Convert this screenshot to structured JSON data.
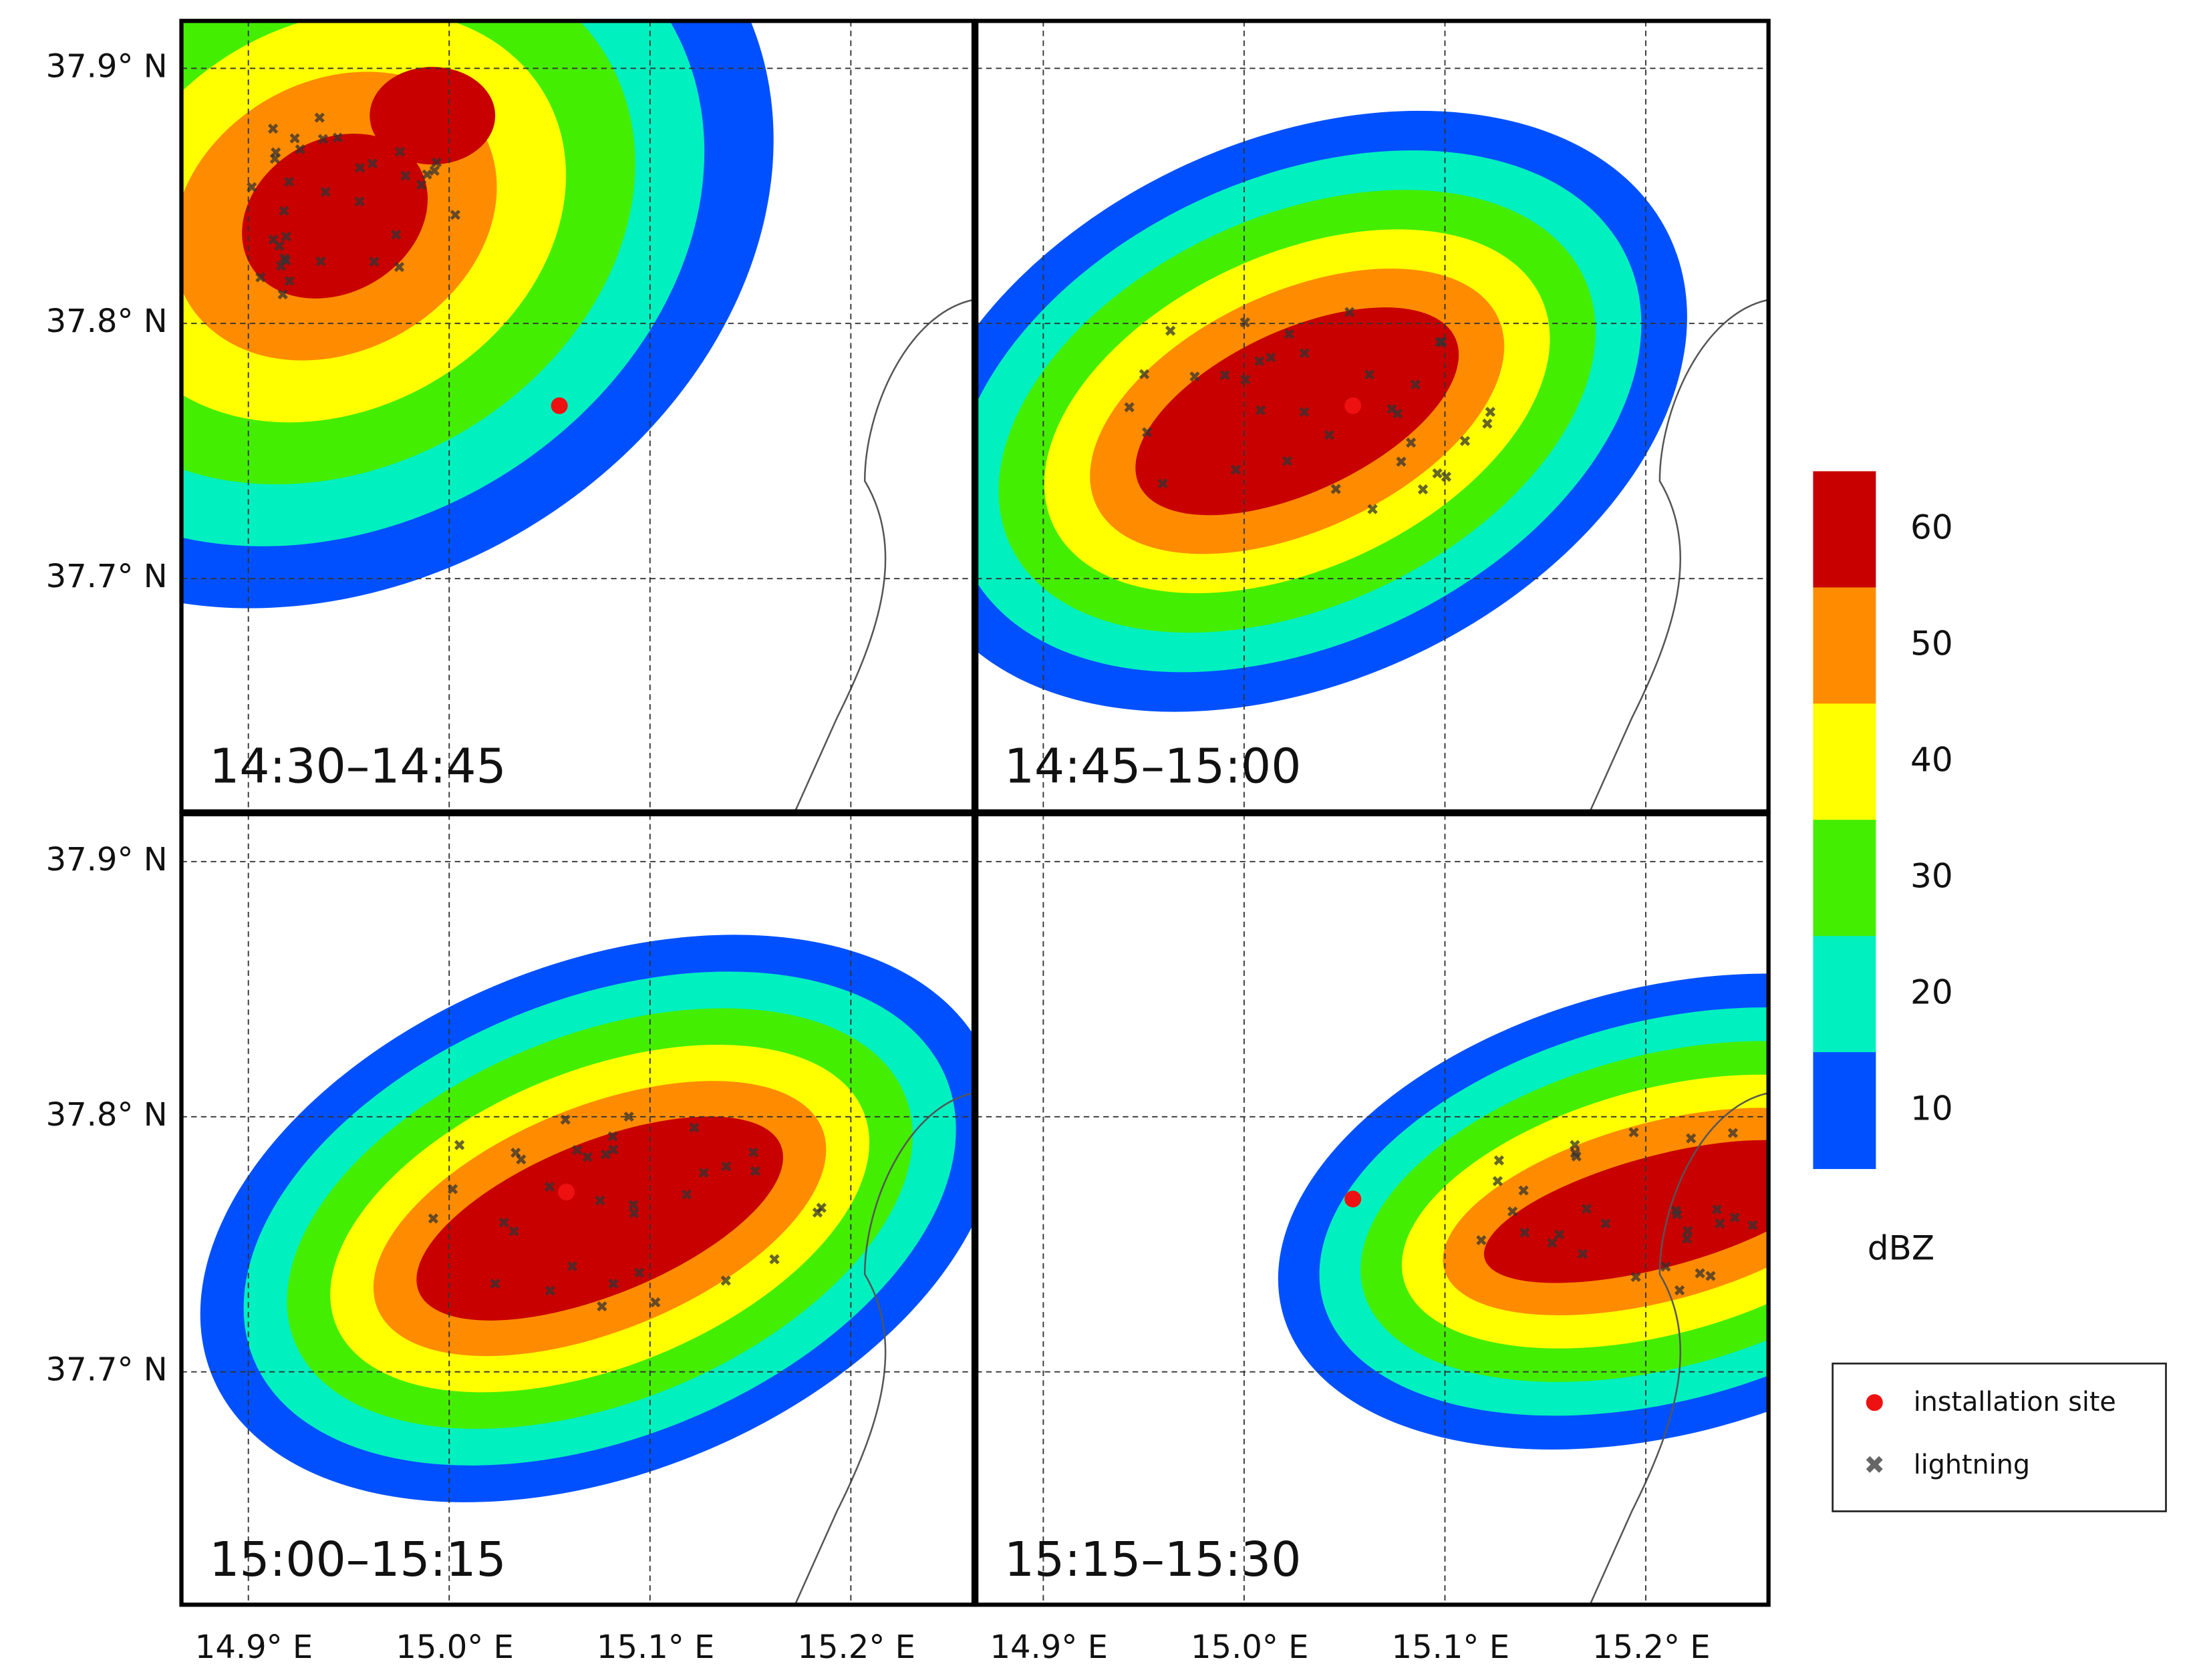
{
  "panels": [
    {
      "label": "14:30–14:45"
    },
    {
      "label": "14:45–15:00"
    },
    {
      "label": "15:00–15:15"
    },
    {
      "label": "15:15–15:30"
    }
  ],
  "y_axis": {
    "ticks": [
      "37.9° N",
      "37.8° N",
      "37.7° N"
    ]
  },
  "x_axis": {
    "ticks": [
      "14.9° E",
      "15.0° E",
      "15.1° E",
      "15.2° E"
    ]
  },
  "colorbar": {
    "unit": "dBZ",
    "levels": [
      {
        "label": "60",
        "color": "#c80000"
      },
      {
        "label": "50",
        "color": "#ff8c00"
      },
      {
        "label": "40",
        "color": "#ffff00"
      },
      {
        "label": "30",
        "color": "#44ee00"
      },
      {
        "label": "20",
        "color": "#00f0c0"
      },
      {
        "label": "10",
        "color": "#0050ff"
      }
    ]
  },
  "legend": [
    {
      "label": "installation site"
    },
    {
      "label": "lightning"
    }
  ]
}
